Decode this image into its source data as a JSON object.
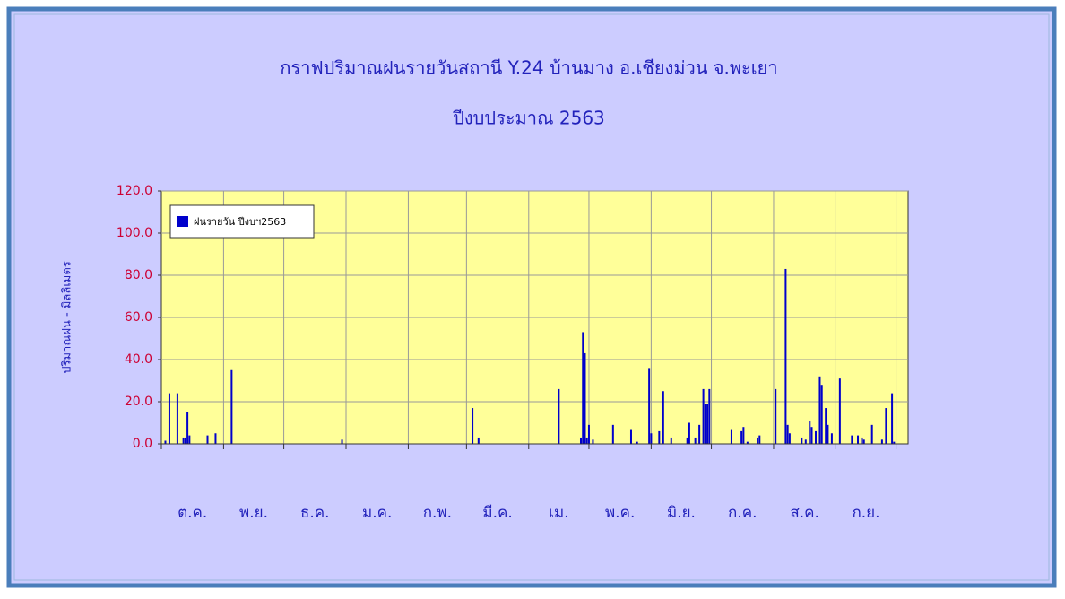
{
  "chart_data": {
    "type": "bar",
    "title": "กราฟปริมาณฝนรายวันสถานี Y.24 บ้านมาง อ.เชียงม่วน จ.พะเยา",
    "subtitle": "ปีงบประมาณ 2563",
    "y_label": "ปริมาณฝน - มิลลิเมตร",
    "series": [
      {
        "name": "ฝนรายวัน ปีงบฯ2563",
        "color": "#0000cc",
        "x": [
          2,
          4,
          8,
          11,
          12,
          13,
          14,
          23,
          27,
          35,
          90,
          155,
          158,
          198,
          209,
          210,
          211,
          212,
          213,
          215,
          225,
          234,
          237,
          243,
          244,
          248,
          250,
          254,
          262,
          263,
          266,
          268,
          270,
          271,
          272,
          273,
          284,
          289,
          290,
          292,
          297,
          298,
          306,
          311,
          312,
          313,
          319,
          321,
          323,
          324,
          326,
          328,
          329,
          331,
          332,
          334,
          338,
          344,
          347,
          349,
          350,
          354,
          359,
          361,
          364,
          365
        ],
        "values": [
          1.5,
          24,
          24,
          3,
          3,
          15,
          4,
          4,
          5,
          35,
          2,
          17,
          3,
          26,
          3,
          53,
          43,
          3,
          9,
          2,
          9,
          7,
          1,
          36,
          5,
          6,
          25,
          3,
          3,
          10,
          3,
          9,
          26,
          19,
          19,
          26,
          7,
          6,
          8,
          1,
          3,
          4,
          26,
          83,
          9,
          5,
          3,
          2,
          11,
          8,
          6,
          32,
          28,
          17,
          9,
          5,
          31,
          4,
          4,
          3,
          2,
          9,
          2,
          17,
          24,
          1
        ]
      }
    ],
    "xlim": [
      0,
      372
    ],
    "xticks": [
      {
        "value": 0,
        "label": "ต.ค."
      },
      {
        "value": 31,
        "label": "พ.ย."
      },
      {
        "value": 61,
        "label": "ธ.ค."
      },
      {
        "value": 92,
        "label": "ม.ค."
      },
      {
        "value": 123,
        "label": "ก.พ."
      },
      {
        "value": 152,
        "label": "มี.ค."
      },
      {
        "value": 183,
        "label": "เม."
      },
      {
        "value": 213,
        "label": "พ.ค."
      },
      {
        "value": 244,
        "label": "มิ.ย."
      },
      {
        "value": 274,
        "label": "ก.ค."
      },
      {
        "value": 305,
        "label": "ส.ค."
      },
      {
        "value": 336,
        "label": "ก.ย."
      },
      {
        "value": 366,
        "label": ""
      }
    ],
    "ylim": [
      0,
      120
    ],
    "yticks": [
      {
        "value": 0,
        "label": "0.0"
      },
      {
        "value": 20,
        "label": "20.0"
      },
      {
        "value": 40,
        "label": "40.0"
      },
      {
        "value": 60,
        "label": "60.0"
      },
      {
        "value": 80,
        "label": "80.0"
      },
      {
        "value": 100,
        "label": "100.0"
      },
      {
        "value": 120,
        "label": "120.0"
      }
    ],
    "grid": true,
    "legend": "top-left"
  }
}
